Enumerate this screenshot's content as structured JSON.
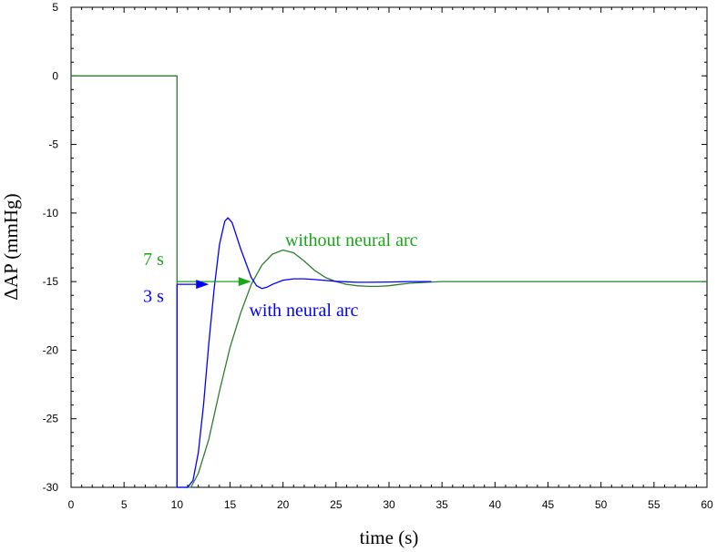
{
  "chart_data": {
    "type": "line",
    "title": "",
    "xlabel": "time (s)",
    "ylabel": "ΔAP (mmHg)",
    "xlim": [
      0,
      60
    ],
    "ylim": [
      -30,
      5
    ],
    "xticks": [
      0,
      5,
      10,
      15,
      20,
      25,
      30,
      35,
      40,
      45,
      50,
      55,
      60
    ],
    "yticks": [
      5,
      0,
      -5,
      -10,
      -15,
      -20,
      -25,
      -30
    ],
    "grid": false,
    "colors": {
      "green": "#2e7d2e",
      "blue": "#0000ff",
      "annot_green": "#1aa51a",
      "annot_blue": "#0000ff"
    },
    "series": [
      {
        "color": "#2e7d2e",
        "points": [
          [
            0,
            0
          ],
          [
            10,
            0
          ],
          [
            10,
            -30
          ],
          [
            11.3,
            -30
          ],
          [
            12,
            -29
          ],
          [
            13,
            -26.5
          ],
          [
            14,
            -23
          ],
          [
            15,
            -19.8
          ],
          [
            16,
            -17.3
          ],
          [
            17,
            -15.2
          ],
          [
            18,
            -13.8
          ],
          [
            19,
            -13
          ],
          [
            20,
            -12.7
          ],
          [
            21,
            -12.9
          ],
          [
            22,
            -13.5
          ],
          [
            23,
            -14.2
          ],
          [
            24,
            -14.7
          ],
          [
            25,
            -15
          ],
          [
            26,
            -15.2
          ],
          [
            27,
            -15.3
          ],
          [
            28,
            -15.35
          ],
          [
            29,
            -15.35
          ],
          [
            30,
            -15.3
          ],
          [
            31,
            -15.2
          ],
          [
            32,
            -15.12
          ],
          [
            33,
            -15.07
          ],
          [
            34,
            -15.03
          ],
          [
            35,
            -15
          ],
          [
            60,
            -15
          ]
        ]
      },
      {
        "color": "#0000ff",
        "points": [
          [
            10,
            -15.2
          ],
          [
            10,
            -30
          ],
          [
            11,
            -30
          ],
          [
            11.5,
            -29.5
          ],
          [
            12,
            -27.5
          ],
          [
            12.5,
            -24
          ],
          [
            13,
            -19.5
          ],
          [
            13.5,
            -15.5
          ],
          [
            14,
            -12.3
          ],
          [
            14.5,
            -10.6
          ],
          [
            14.8,
            -10.35
          ],
          [
            15.2,
            -10.7
          ],
          [
            16,
            -12.6
          ],
          [
            17,
            -14.7
          ],
          [
            17.5,
            -15.3
          ],
          [
            18,
            -15.5
          ],
          [
            18.5,
            -15.4
          ],
          [
            19,
            -15.2
          ],
          [
            20,
            -14.9
          ],
          [
            21,
            -14.8
          ],
          [
            22,
            -14.8
          ],
          [
            23,
            -14.85
          ],
          [
            24,
            -14.92
          ],
          [
            25,
            -14.98
          ],
          [
            26,
            -15.02
          ],
          [
            27,
            -15.05
          ],
          [
            28,
            -15.05
          ],
          [
            30,
            -15.03
          ],
          [
            32,
            -15
          ],
          [
            34,
            -15
          ]
        ]
      }
    ],
    "annotations": [
      {
        "text": "without neural arc",
        "color": "#1aa51a",
        "x": 20.2,
        "y": -12.4
      },
      {
        "text": "with neural arc",
        "color": "#0000ff",
        "x": 16.8,
        "y": -17.5
      },
      {
        "text": "7 s",
        "color": "#1aa51a",
        "x": 6.8,
        "y": -13.8
      },
      {
        "text": "3 s",
        "color": "#0000ff",
        "x": 6.8,
        "y": -16.5
      }
    ],
    "arrows": [
      {
        "label": "7 s",
        "color": "#1aa51a",
        "y": -15,
        "x_start": 10,
        "x_end": 17
      },
      {
        "label": "3 s",
        "color": "#0000ff",
        "y": -15.2,
        "x_start": 10,
        "x_end": 13
      }
    ]
  }
}
